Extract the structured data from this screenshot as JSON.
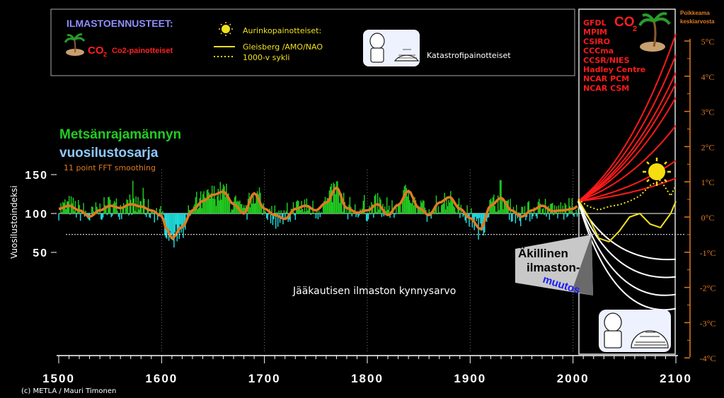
{
  "legend_box": {
    "title": "ILMASTOENNUSTEET:",
    "co2_symbol": "CO",
    "co2_sub": "2",
    "co2_label": "Co2-painotteiset",
    "solar_title": "Aurinkopainotteiset:",
    "solar_line1": "Gleisberg /AMO/NAO",
    "solar_line2": "1000-v sykli",
    "catastrophe_label": "Katastrofipainotteiset"
  },
  "colors": {
    "background": "#000000",
    "positive_fill": "#22cc22",
    "negative_fill": "#22dddd",
    "smoothing": "#e07a1f",
    "co2_models": "#ff1a1a",
    "solar": "#f0e020",
    "catastrophe": "#ffffff",
    "right_axis": "#e07a1f",
    "title_green": "#22cc22",
    "title_blue": "#8fc8ff",
    "legend_title": "#8f8fff"
  },
  "chart_data": {
    "type": "area",
    "title_line1": "Metsänrajamännyn",
    "title_line2": "vuosilustosarja",
    "subtitle": "11 point FFT smoothing",
    "ylabel": "Vuosilustoindeksi",
    "xlim": [
      1500,
      2100
    ],
    "ylim_left": [
      0,
      150
    ],
    "baseline": 100,
    "x_ticks": [
      "1500",
      "1600",
      "1700",
      "1800",
      "1900",
      "2000",
      "2100"
    ],
    "y_ticks_left": [
      "50",
      "100",
      "150"
    ],
    "right_axis_title_line1": "Poikkeama",
    "right_axis_title_line2": "keskiarvosta",
    "right_axis_ticks": [
      "5",
      "4",
      "3",
      "2",
      "1",
      "0",
      "-1",
      "-2",
      "-3",
      "-4"
    ],
    "right_axis_unit": "°C",
    "threshold_label": "Jääkautisen ilmaston kynnysarvo",
    "threshold_value": 73,
    "abrupt_change_line1": "Äkillinen",
    "abrupt_change_line2": "ilmaston-",
    "abrupt_change_line3": "muutos",
    "model_box_symbol": "CO",
    "model_box_sub": "2",
    "models": [
      "GFDL",
      "MPIM",
      "CSIRO",
      "CCCma",
      "CCSR/NIES",
      "Hadley Centre",
      "NCAR PCM",
      "NCAR CSM"
    ],
    "smoothing_series": {
      "name": "11 point FFT smoothing",
      "x": [
        1500,
        1510,
        1520,
        1530,
        1540,
        1550,
        1560,
        1570,
        1580,
        1590,
        1600,
        1605,
        1610,
        1620,
        1630,
        1640,
        1650,
        1660,
        1670,
        1680,
        1690,
        1700,
        1710,
        1720,
        1730,
        1740,
        1750,
        1760,
        1770,
        1780,
        1790,
        1800,
        1810,
        1820,
        1830,
        1840,
        1850,
        1860,
        1870,
        1880,
        1890,
        1900,
        1910,
        1920,
        1930,
        1940,
        1950,
        1960,
        1970,
        1980,
        1990,
        2000,
        2005
      ],
      "y": [
        106,
        110,
        104,
        96,
        104,
        110,
        107,
        112,
        109,
        104,
        97,
        80,
        68,
        83,
        104,
        116,
        124,
        128,
        112,
        100,
        126,
        106,
        98,
        93,
        106,
        110,
        104,
        114,
        133,
        107,
        101,
        104,
        112,
        98,
        111,
        129,
        107,
        98,
        114,
        121,
        106,
        94,
        80,
        110,
        120,
        104,
        96,
        104,
        110,
        103,
        104,
        106,
        110
      ]
    },
    "co2_projections": {
      "x_start": 2005,
      "x_end": 2100,
      "end_values_celsius": [
        5.2,
        4.6,
        4.1,
        3.8,
        3.4,
        2.6,
        1.6,
        1.1
      ]
    },
    "solar_projections": [
      {
        "name": "Gleisberg /AMO/NAO",
        "x": [
          2005,
          2015,
          2025,
          2035,
          2045,
          2055,
          2065,
          2075,
          2085,
          2095,
          2100
        ],
        "y": [
          0.5,
          0.0,
          -0.6,
          -0.7,
          -0.4,
          0.0,
          0.1,
          -0.2,
          -0.3,
          0.1,
          0.45
        ]
      },
      {
        "name": "1000-v sykli",
        "x": [
          2005,
          2015,
          2025,
          2035,
          2045,
          2055,
          2065,
          2075,
          2085,
          2095,
          2100
        ],
        "y": [
          0.5,
          0.3,
          0.2,
          0.3,
          0.35,
          0.45,
          0.6,
          0.9,
          1.05,
          0.6,
          0.9
        ]
      }
    ],
    "catastrophe_projections": {
      "x_start": 2005,
      "x_end": 2100,
      "end_values_celsius": [
        -1.2,
        -1.7,
        -2.2,
        -2.6
      ]
    }
  },
  "credit": "(c) METLA / Mauri Timonen"
}
